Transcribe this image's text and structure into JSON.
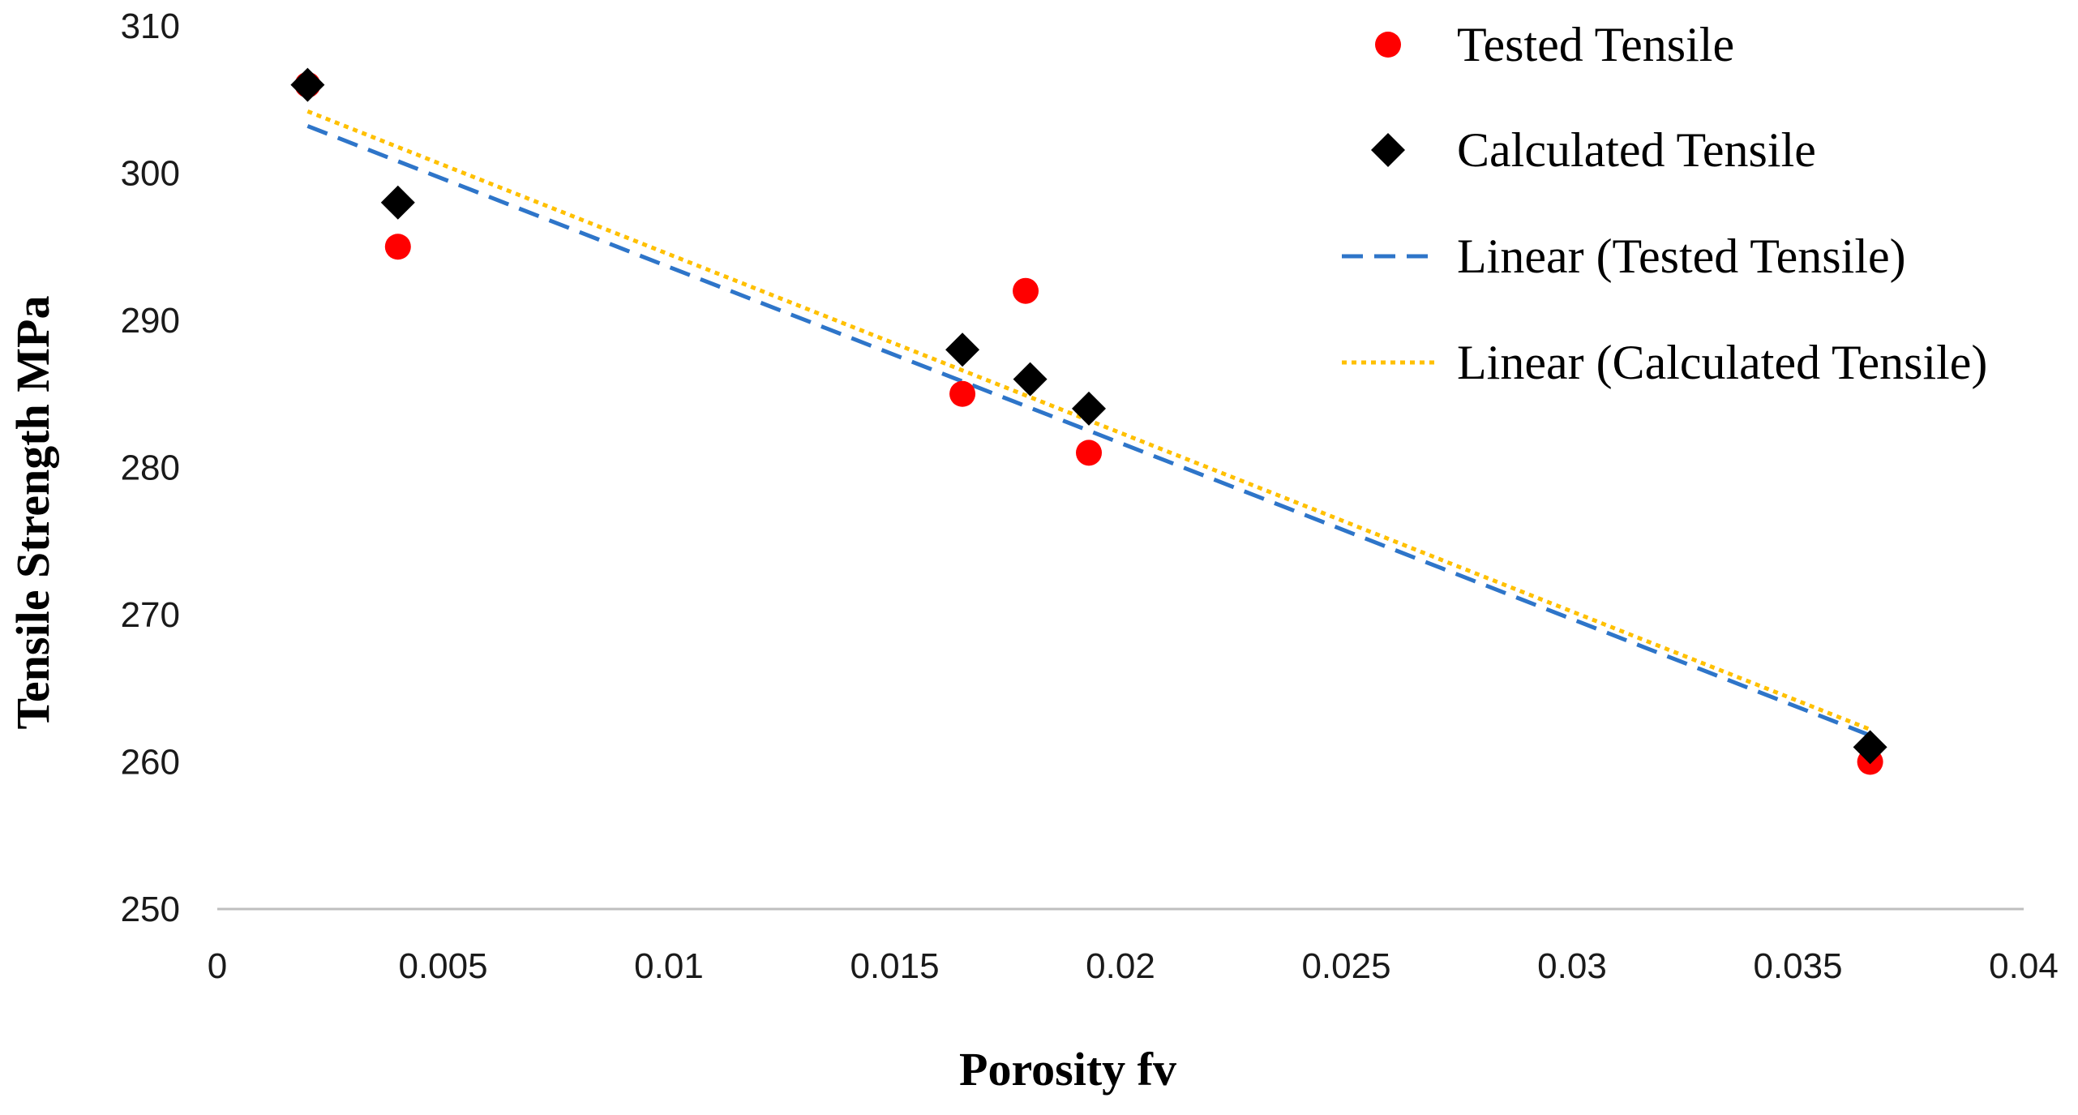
{
  "chart_data": {
    "type": "scatter",
    "title": "",
    "xlabel": "Porosity  fv",
    "ylabel": "Tensile  Strength MPa",
    "xlim": [
      0,
      0.04
    ],
    "ylim": [
      250,
      310
    ],
    "x_ticks": [
      "0",
      "0.005",
      "0.01",
      "0.015",
      "0.02",
      "0.025",
      "0.03",
      "0.035",
      "0.04"
    ],
    "y_ticks": [
      "250",
      "260",
      "270",
      "280",
      "290",
      "300",
      "310"
    ],
    "grid": false,
    "legend_position": "top-right",
    "series": [
      {
        "name": "Tested Tensile",
        "marker": "circle",
        "color": "#ff0000",
        "points": [
          {
            "x": 0.002,
            "y": 306
          },
          {
            "x": 0.004,
            "y": 295
          },
          {
            "x": 0.0165,
            "y": 285
          },
          {
            "x": 0.0179,
            "y": 292
          },
          {
            "x": 0.0193,
            "y": 281
          },
          {
            "x": 0.0366,
            "y": 260
          }
        ]
      },
      {
        "name": "Calculated Tensile",
        "marker": "diamond",
        "color": "#000000",
        "points": [
          {
            "x": 0.002,
            "y": 306
          },
          {
            "x": 0.004,
            "y": 298
          },
          {
            "x": 0.0165,
            "y": 288
          },
          {
            "x": 0.018,
            "y": 286
          },
          {
            "x": 0.0193,
            "y": 284
          },
          {
            "x": 0.0366,
            "y": 261
          }
        ]
      }
    ],
    "trendlines": [
      {
        "name": "Linear (Tested Tensile)",
        "style": "dashed",
        "color": "#2e75c9",
        "x": [
          0.002,
          0.0366
        ],
        "y": [
          303.2,
          261.8
        ]
      },
      {
        "name": "Linear (Calculated Tensile)",
        "style": "dotted",
        "color": "#ffc000",
        "x": [
          0.002,
          0.0366
        ],
        "y": [
          304.2,
          262.2
        ]
      }
    ]
  }
}
